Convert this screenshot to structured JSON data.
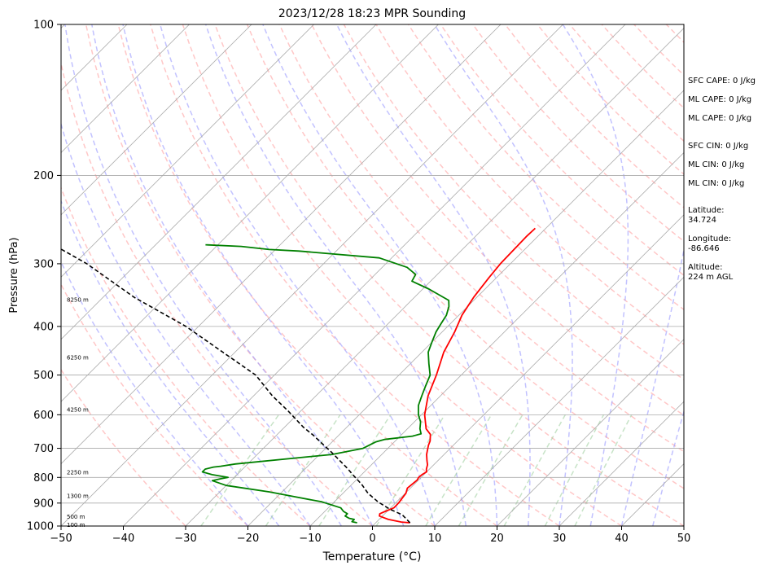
{
  "chart_data": {
    "type": "line",
    "subtype": "skew-T log-P sounding",
    "title": "2023/12/28 18:23 MPR Sounding",
    "xlabel": "Temperature (°C)",
    "ylabel": "Pressure (hPa)",
    "xlim": [
      -50,
      50
    ],
    "ylim": [
      1000,
      100
    ],
    "log_y": true,
    "grid": true,
    "x_ticks": [
      "−50",
      "−40",
      "−30",
      "−20",
      "−10",
      "0",
      "10",
      "20",
      "30",
      "40",
      "50"
    ],
    "y_ticks": [
      {
        "p": 100,
        "label": "100"
      },
      {
        "p": 200,
        "label": "200"
      },
      {
        "p": 300,
        "label": "300"
      },
      {
        "p": 400,
        "label": "400"
      },
      {
        "p": 500,
        "label": "500"
      },
      {
        "p": 600,
        "label": "600"
      },
      {
        "p": 700,
        "label": "700"
      },
      {
        "p": 800,
        "label": "800"
      },
      {
        "p": 900,
        "label": "900"
      },
      {
        "p": 1000,
        "label": "1000"
      }
    ],
    "colors": {
      "temperature": "#ff0000",
      "dewpoint": "#008000",
      "parcel": "#000000",
      "dry_adiabats": "#ff9999",
      "moist_adiabats": "#9999ff",
      "mixing_ratio": "#99cc99",
      "isotherms": "#aaaaaa"
    },
    "series": [
      {
        "key": "temperature",
        "points": [
          [
            5.5,
            985
          ],
          [
            4,
            982
          ],
          [
            1.5,
            970
          ],
          [
            -0.5,
            955
          ],
          [
            -0.8,
            945
          ],
          [
            -0.3,
            935
          ],
          [
            0.5,
            920
          ],
          [
            0.5,
            900
          ],
          [
            0.3,
            880
          ],
          [
            0.1,
            860
          ],
          [
            -0.5,
            840
          ],
          [
            -0.3,
            820
          ],
          [
            -0.2,
            810
          ],
          [
            -0.4,
            800
          ],
          [
            -0.3,
            790
          ],
          [
            0,
            780
          ],
          [
            -0.5,
            770
          ],
          [
            -1,
            755
          ],
          [
            -1.8,
            740
          ],
          [
            -2.8,
            720
          ],
          [
            -3.4,
            705
          ],
          [
            -4,
            690
          ],
          [
            -4.4,
            677
          ],
          [
            -5,
            665
          ],
          [
            -5.4,
            657
          ],
          [
            -7,
            640
          ],
          [
            -9.5,
            600
          ],
          [
            -12,
            550
          ],
          [
            -14,
            500
          ],
          [
            -16.5,
            450
          ],
          [
            -18,
            410
          ],
          [
            -19.5,
            380
          ],
          [
            -20.5,
            350
          ],
          [
            -21.2,
            320
          ],
          [
            -21.6,
            300
          ],
          [
            -21.7,
            280
          ],
          [
            -21.8,
            265
          ],
          [
            -21.7,
            255
          ]
        ]
      },
      {
        "key": "dewpoint",
        "points": [
          [
            -3,
            985
          ],
          [
            -4,
            980
          ],
          [
            -4,
            970
          ],
          [
            -5,
            965
          ],
          [
            -6,
            955
          ],
          [
            -6,
            945
          ],
          [
            -7,
            935
          ],
          [
            -8,
            920
          ],
          [
            -12,
            895
          ],
          [
            -17,
            875
          ],
          [
            -22,
            855
          ],
          [
            -30,
            830
          ],
          [
            -33,
            812
          ],
          [
            -32,
            805
          ],
          [
            -31,
            800
          ],
          [
            -34,
            790
          ],
          [
            -36,
            780
          ],
          [
            -36,
            770
          ],
          [
            -35,
            763
          ],
          [
            -34,
            760
          ],
          [
            -32,
            752
          ],
          [
            -18,
            720
          ],
          [
            -14,
            700
          ],
          [
            -13.5,
            690
          ],
          [
            -13,
            680
          ],
          [
            -12,
            672
          ],
          [
            -8,
            662
          ],
          [
            -7,
            655
          ],
          [
            -8,
            640
          ],
          [
            -9,
            620
          ],
          [
            -10.5,
            600
          ],
          [
            -12,
            575
          ],
          [
            -13,
            550
          ],
          [
            -14,
            525
          ],
          [
            -15,
            500
          ],
          [
            -17,
            475
          ],
          [
            -19,
            450
          ],
          [
            -20,
            430
          ],
          [
            -21,
            410
          ],
          [
            -21.5,
            395
          ],
          [
            -22,
            380
          ],
          [
            -23,
            365
          ],
          [
            -24,
            355
          ],
          [
            -29,
            337
          ],
          [
            -33,
            325
          ],
          [
            -33.5,
            315
          ],
          [
            -36,
            305
          ],
          [
            -42,
            292
          ],
          [
            -56,
            283
          ],
          [
            -61,
            281
          ],
          [
            -66,
            277
          ],
          [
            -72,
            275
          ]
        ]
      },
      {
        "key": "parcel",
        "points": [
          [
            5.5,
            985
          ],
          [
            3,
            950
          ],
          [
            0,
            925
          ],
          [
            -3,
            895
          ],
          [
            -6,
            860
          ],
          [
            -8.5,
            825
          ],
          [
            -11,
            795
          ],
          [
            -13.5,
            765
          ],
          [
            -16,
            738
          ],
          [
            -18.5,
            712
          ],
          [
            -21,
            688
          ],
          [
            -24,
            660
          ],
          [
            -27,
            635
          ],
          [
            -32,
            590
          ],
          [
            -37,
            550
          ],
          [
            -43,
            500
          ],
          [
            -52,
            450
          ],
          [
            -62,
            400
          ],
          [
            -75,
            350
          ],
          [
            -88,
            300
          ],
          [
            -100,
            265
          ]
        ]
      }
    ],
    "height_labels": [
      {
        "p": 353,
        "label": "8250 m"
      },
      {
        "p": 460,
        "label": "6250 m"
      },
      {
        "p": 585,
        "label": "4250 m"
      },
      {
        "p": 780,
        "label": "2250 m"
      },
      {
        "p": 870,
        "label": "1300 m"
      },
      {
        "p": 957,
        "label": "500 m"
      },
      {
        "p": 992,
        "label": "100 m"
      }
    ],
    "info_lines": [
      "SFC CAPE: 0 J/kg",
      "ML CAPE: 0 J/kg",
      "ML CAPE: 0 J/kg",
      "SFC CIN: 0 J/kg",
      "ML CIN: 0 J/kg",
      "ML CIN: 0 J/kg",
      "Latitude:",
      "34.724",
      "Longitude:",
      "-86.646",
      "Altitude:",
      "224 m AGL"
    ]
  }
}
